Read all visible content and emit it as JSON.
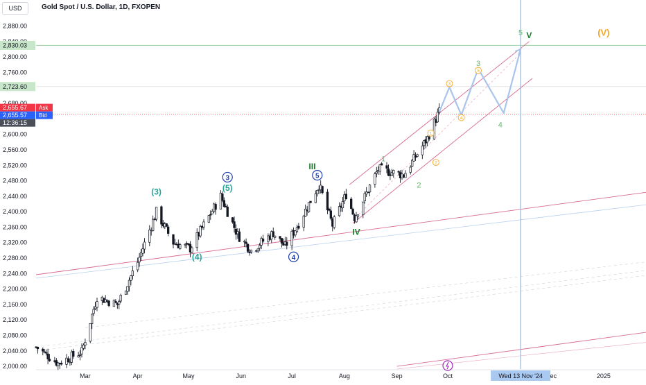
{
  "header": {
    "currency": "USD",
    "title": "Gold Spot / U.S. Dollar, 1D, FXOPEN"
  },
  "colors": {
    "up": "#131722",
    "down": "#131722",
    "ask": "#f23645",
    "bid": "#2962ff",
    "green_wave": "#26a69a",
    "dark_green": "#1b7a2a",
    "light_green": "#66bb6a",
    "blue_wave": "#1e3fa8",
    "orange": "#f5a623",
    "projection": "#a9c4ec",
    "vertical_line": "#90b8e6",
    "channel": "#c2185b",
    "purple": "#9c27b0",
    "resistance": "#a5d6a7",
    "text_muted": "#131722"
  },
  "chart_data": {
    "type": "candlestick",
    "title": "Gold Spot / U.S. Dollar, 1D, FXOPEN",
    "ylim": [
      1993,
      2908
    ],
    "xlim": [
      "2024-02-01",
      "2025-01-26"
    ],
    "y_ticks": [
      "2,000.00",
      "2,040.00",
      "2,080.00",
      "2,120.00",
      "2,160.00",
      "2,200.00",
      "2,240.00",
      "2,280.00",
      "2,320.00",
      "2,360.00",
      "2,400.00",
      "2,440.00",
      "2,480.00",
      "2,520.00",
      "2,560.00",
      "2,600.00",
      "2,640.00",
      "2,680.00",
      "2,720.00",
      "2,760.00",
      "2,800.00",
      "2,840.00",
      "2,880.00"
    ],
    "x_ticks": [
      {
        "label": "Mar",
        "date": "2024-03-01"
      },
      {
        "label": "Apr",
        "date": "2024-04-01"
      },
      {
        "label": "May",
        "date": "2024-05-01"
      },
      {
        "label": "Jun",
        "date": "2024-06-01"
      },
      {
        "label": "Jul",
        "date": "2024-07-01"
      },
      {
        "label": "Aug",
        "date": "2024-08-01"
      },
      {
        "label": "Sep",
        "date": "2024-09-01"
      },
      {
        "label": "Oct",
        "date": "2024-10-01"
      },
      {
        "label": "Dec",
        "date": "2024-12-01"
      },
      {
        "label": "2025",
        "date": "2025-01-01"
      }
    ],
    "crosshair": {
      "date": "2024-11-13",
      "label": "Wed 13 Nov '24"
    },
    "price_badges": [
      {
        "name": "resistance",
        "value": 2830.03,
        "label": "2,830.03"
      },
      {
        "name": "level",
        "value": 2723.6,
        "label": "2,723.60"
      },
      {
        "name": "ask",
        "value": 2655.67,
        "label": "2,655.67",
        "tag": "Ask"
      },
      {
        "name": "bid",
        "value": 2655.57,
        "label": "2,655.57",
        "tag": "Bid"
      },
      {
        "name": "countdown",
        "label": "12:36:15"
      }
    ],
    "path_keypoints": [
      [
        "2024-02-01",
        2050
      ],
      [
        "2024-02-14",
        2008
      ],
      [
        "2024-02-28",
        2038
      ],
      [
        "2024-03-08",
        2180
      ],
      [
        "2024-03-20",
        2160
      ],
      [
        "2024-04-01",
        2270
      ],
      [
        "2024-04-12",
        2400
      ],
      [
        "2024-04-22",
        2320
      ],
      [
        "2024-05-02",
        2305
      ],
      [
        "2024-05-20",
        2440
      ],
      [
        "2024-05-30",
        2340
      ],
      [
        "2024-06-07",
        2300
      ],
      [
        "2024-06-20",
        2345
      ],
      [
        "2024-06-27",
        2310
      ],
      [
        "2024-07-05",
        2370
      ],
      [
        "2024-07-17",
        2470
      ],
      [
        "2024-07-25",
        2365
      ],
      [
        "2024-08-02",
        2445
      ],
      [
        "2024-08-07",
        2385
      ],
      [
        "2024-08-21",
        2510
      ],
      [
        "2024-09-05",
        2495
      ],
      [
        "2024-09-19",
        2590
      ],
      [
        "2024-09-26",
        2660
      ]
    ],
    "wave_labels": [
      {
        "text": "(3)",
        "date": "2024-04-12",
        "price": 2444,
        "style": "green_wave"
      },
      {
        "text": "(4)",
        "date": "2024-05-06",
        "price": 2276,
        "style": "green_wave"
      },
      {
        "text": "(5)",
        "date": "2024-05-24",
        "price": 2454,
        "style": "green_wave"
      },
      {
        "text": "3",
        "date": "2024-05-24",
        "price": 2482,
        "style": "blue_circle"
      },
      {
        "text": "4",
        "date": "2024-07-02",
        "price": 2276,
        "style": "blue_circle"
      },
      {
        "text": "III",
        "date": "2024-07-13",
        "price": 2510,
        "style": "dark_green"
      },
      {
        "text": "5",
        "date": "2024-07-16",
        "price": 2487,
        "style": "blue_circle"
      },
      {
        "text": "IV",
        "date": "2024-08-08",
        "price": 2340,
        "style": "dark_green"
      },
      {
        "text": "1",
        "date": "2024-08-24",
        "price": 2530,
        "style": "light_green"
      },
      {
        "text": "2",
        "date": "2024-09-14",
        "price": 2462,
        "style": "light_green"
      },
      {
        "text": "1",
        "date": "2024-09-21",
        "price": 2598,
        "style": "orange_circle"
      },
      {
        "text": "2",
        "date": "2024-09-24",
        "price": 2522,
        "style": "orange_circle"
      },
      {
        "text": "3",
        "date": "2024-10-02",
        "price": 2726,
        "style": "orange_circle"
      },
      {
        "text": "4",
        "date": "2024-10-09",
        "price": 2638,
        "style": "orange_circle"
      },
      {
        "text": "5",
        "date": "2024-10-19",
        "price": 2760,
        "style": "orange_circle"
      },
      {
        "text": "3",
        "date": "2024-10-19",
        "price": 2777,
        "style": "light_green"
      },
      {
        "text": "4",
        "date": "2024-11-01",
        "price": 2618,
        "style": "light_green"
      },
      {
        "text": "5",
        "date": "2024-11-13",
        "price": 2857,
        "style": "light_green"
      },
      {
        "text": "V",
        "date": "2024-11-18",
        "price": 2849,
        "style": "dark_green"
      },
      {
        "text": "(V)",
        "date": "2025-01-01",
        "price": 2855,
        "style": "orange"
      }
    ],
    "projection_path": [
      [
        "2024-09-26",
        2658
      ],
      [
        "2024-10-02",
        2722
      ],
      [
        "2024-10-09",
        2650
      ],
      [
        "2024-10-19",
        2770
      ],
      [
        "2024-11-03",
        2655
      ],
      [
        "2024-11-13",
        2820
      ]
    ],
    "lines": [
      {
        "name": "channel-upper",
        "from": [
          "2024-08-04",
          2470
        ],
        "to": [
          "2024-11-18",
          2840
        ],
        "style": "channel"
      },
      {
        "name": "channel-lower",
        "from": [
          "2024-08-06",
          2370
        ],
        "to": [
          "2024-11-20",
          2745
        ],
        "style": "channel"
      },
      {
        "name": "channel-mid",
        "from": [
          "2024-08-06",
          2378
        ],
        "to": [
          "2024-11-13",
          2810
        ],
        "style": "channel_dash"
      },
      {
        "name": "long-trend",
        "from": [
          "2024-02-01",
          2237
        ],
        "to": [
          "2025-01-26",
          2450
        ],
        "style": "channel"
      },
      {
        "name": "long-trend-parallel",
        "from": [
          "2024-02-01",
          2228
        ],
        "to": [
          "2025-01-26",
          2418
        ],
        "style": "projection_thin"
      },
      {
        "name": "low-trend-upper",
        "from": [
          "2024-09-01",
          2000
        ],
        "to": [
          "2025-01-26",
          2088
        ],
        "style": "channel"
      },
      {
        "name": "low-trend-lower",
        "from": [
          "2024-09-01",
          1993
        ],
        "to": [
          "2025-01-26",
          2062
        ],
        "style": "channel_thin"
      },
      {
        "name": "faint-trend-a",
        "from": [
          "2024-02-01",
          2050
        ],
        "to": [
          "2025-01-26",
          2248
        ],
        "style": "faint"
      },
      {
        "name": "faint-trend-b",
        "from": [
          "2024-02-01",
          2040
        ],
        "to": [
          "2025-01-26",
          2235
        ],
        "style": "faint"
      },
      {
        "name": "faint-trend-c",
        "from": [
          "2024-03-01",
          2100
        ],
        "to": [
          "2025-01-26",
          2270
        ],
        "style": "faint"
      }
    ],
    "event_marker": {
      "date": "2024-10-01",
      "price": 2002
    }
  }
}
